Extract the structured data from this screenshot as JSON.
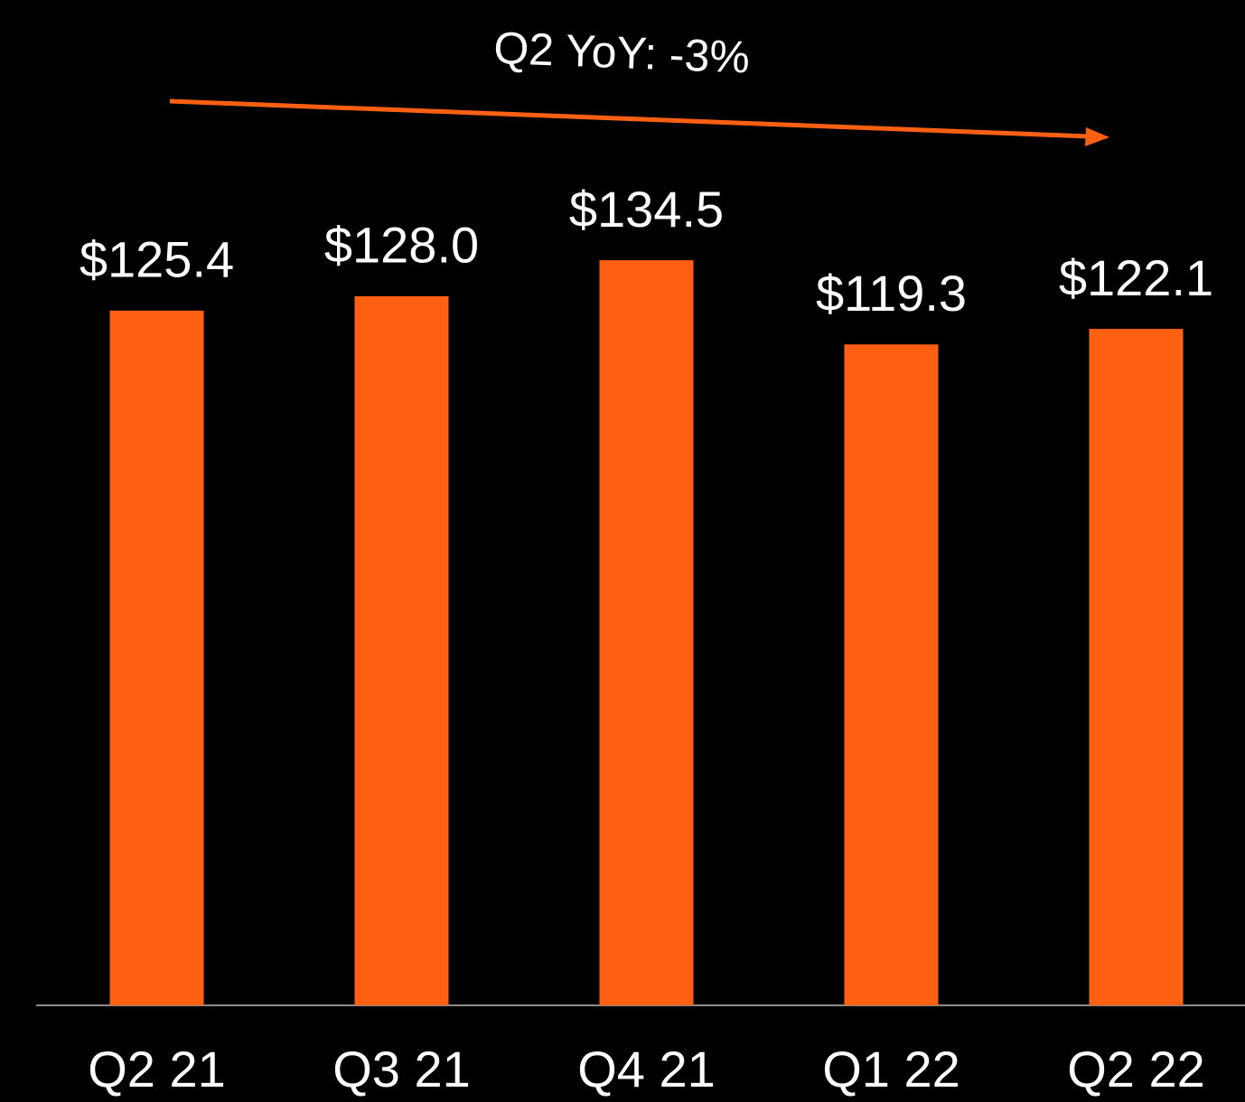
{
  "chart_data": {
    "type": "bar",
    "annotation": "Q2 YoY: -3%",
    "categories": [
      "Q2 21",
      "Q3 21",
      "Q4 21",
      "Q1 22",
      "Q2 22"
    ],
    "values": [
      125.4,
      128.0,
      134.5,
      119.3,
      122.1
    ],
    "value_labels": [
      "$125.4",
      "$128.0",
      "$134.5",
      "$119.3",
      "$122.1"
    ],
    "color": "#ff6012",
    "ylim": [
      0,
      180
    ]
  }
}
